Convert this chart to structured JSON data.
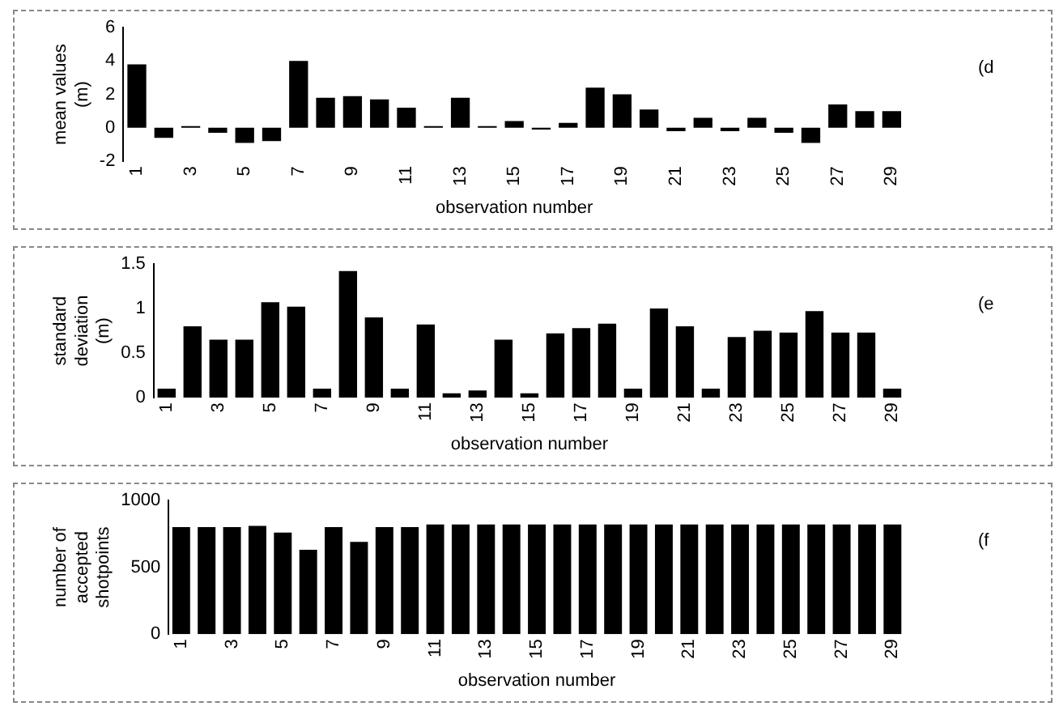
{
  "chart_data": [
    {
      "type": "bar",
      "ylabel": "mean values\n(m)",
      "xlabel": "observation number",
      "annotations": [
        "(d"
      ],
      "categories": [
        "1",
        null,
        "3",
        null,
        "5",
        null,
        "7",
        null,
        "9",
        null,
        "11",
        null,
        "13",
        null,
        "15",
        null,
        "17",
        null,
        "19",
        null,
        "21",
        null,
        "23",
        null,
        "25",
        null,
        "27",
        null,
        "29"
      ],
      "series": [
        {
          "color": "#000000",
          "values": [
            3.8,
            -0.6,
            0.1,
            -0.3,
            -0.9,
            -0.8,
            4.0,
            1.8,
            1.9,
            1.7,
            1.2,
            0.1,
            1.8,
            0.1,
            0.4,
            -0.1,
            0.3,
            2.4,
            2.0,
            1.1,
            -0.2,
            0.6,
            -0.2,
            0.6,
            -0.3,
            -0.9,
            1.4,
            1.0,
            1.0
          ]
        }
      ],
      "ylim": [
        -2,
        6
      ],
      "yticks": [
        -2,
        0,
        2,
        4,
        6
      ],
      "grid": false,
      "legend": false
    },
    {
      "type": "bar",
      "ylabel": "standard\ndeviation\n(m)",
      "xlabel": "observation number",
      "annotations": [
        "(e"
      ],
      "categories": [
        "1",
        null,
        "3",
        null,
        "5",
        null,
        "7",
        null,
        "9",
        null,
        "11",
        null,
        "13",
        null,
        "15",
        null,
        "17",
        null,
        "19",
        null,
        "21",
        null,
        "23",
        null,
        "25",
        null,
        "27",
        null,
        "29"
      ],
      "series": [
        {
          "color": "#000000",
          "values": [
            0.1,
            0.8,
            0.65,
            0.65,
            1.07,
            1.02,
            0.1,
            1.42,
            0.9,
            0.1,
            0.82,
            0.05,
            0.08,
            0.65,
            0.05,
            0.72,
            0.78,
            0.83,
            0.1,
            1.0,
            0.8,
            0.1,
            0.68,
            0.75,
            0.73,
            0.97,
            0.73,
            0.73,
            0.1
          ]
        }
      ],
      "ylim": [
        0,
        1.5
      ],
      "yticks": [
        0,
        0.5,
        1,
        1.5
      ],
      "grid": false,
      "legend": false
    },
    {
      "type": "bar",
      "ylabel": "number of\naccepted\nshotpoints",
      "xlabel": "observation number",
      "annotations": [
        "(f"
      ],
      "categories": [
        "1",
        null,
        "3",
        null,
        "5",
        null,
        "7",
        null,
        "9",
        null,
        "11",
        null,
        "13",
        null,
        "15",
        null,
        "17",
        null,
        "19",
        null,
        "21",
        null,
        "23",
        null,
        "25",
        null,
        "27",
        null,
        "29"
      ],
      "series": [
        {
          "color": "#000000",
          "values": [
            800,
            800,
            800,
            810,
            760,
            630,
            800,
            690,
            800,
            800,
            820,
            820,
            820,
            820,
            820,
            820,
            820,
            820,
            820,
            820,
            820,
            820,
            820,
            820,
            820,
            820,
            820,
            820,
            820
          ]
        }
      ],
      "ylim": [
        0,
        1000
      ],
      "yticks": [
        0,
        500,
        1000
      ],
      "grid": false,
      "legend": false
    }
  ]
}
